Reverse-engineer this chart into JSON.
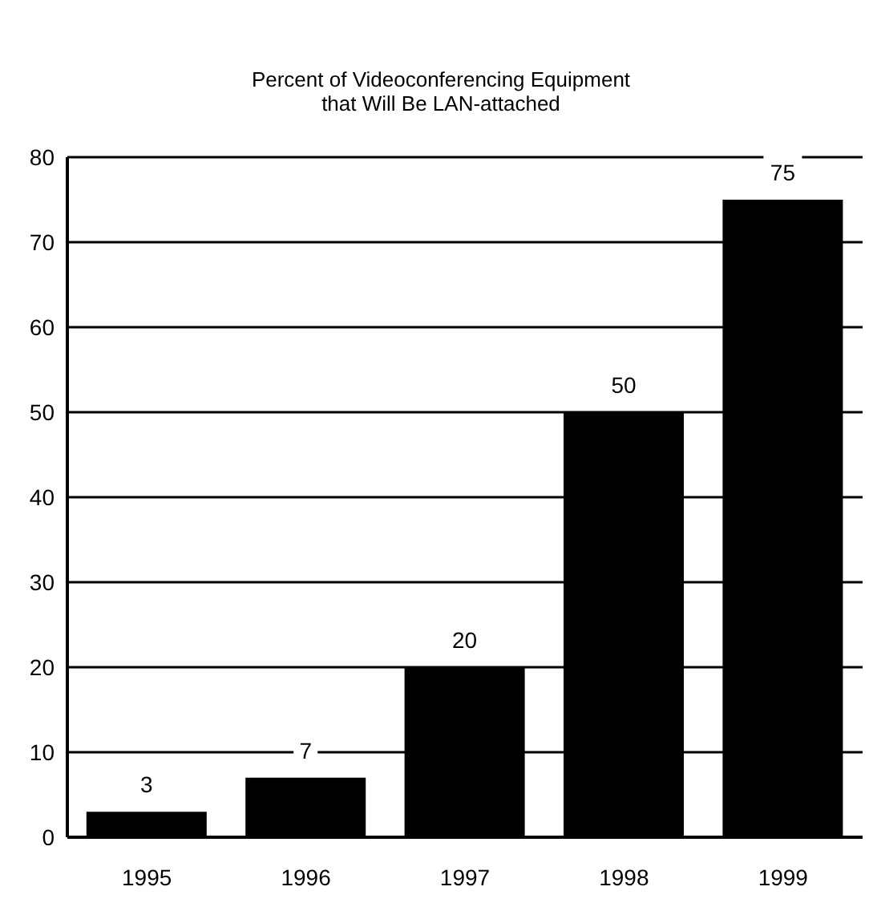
{
  "chart_data": {
    "type": "bar",
    "title": "Percent of Videoconferencing Equipment\nthat Will Be LAN-attached",
    "categories": [
      "1995",
      "1996",
      "1997",
      "1998",
      "1999"
    ],
    "values": [
      3,
      7,
      20,
      50,
      75
    ],
    "color": "#000000",
    "ylim": [
      0,
      80
    ],
    "yticks": [
      0,
      10,
      20,
      30,
      40,
      50,
      60,
      70,
      80
    ],
    "grid": "y",
    "data_labels": true
  }
}
